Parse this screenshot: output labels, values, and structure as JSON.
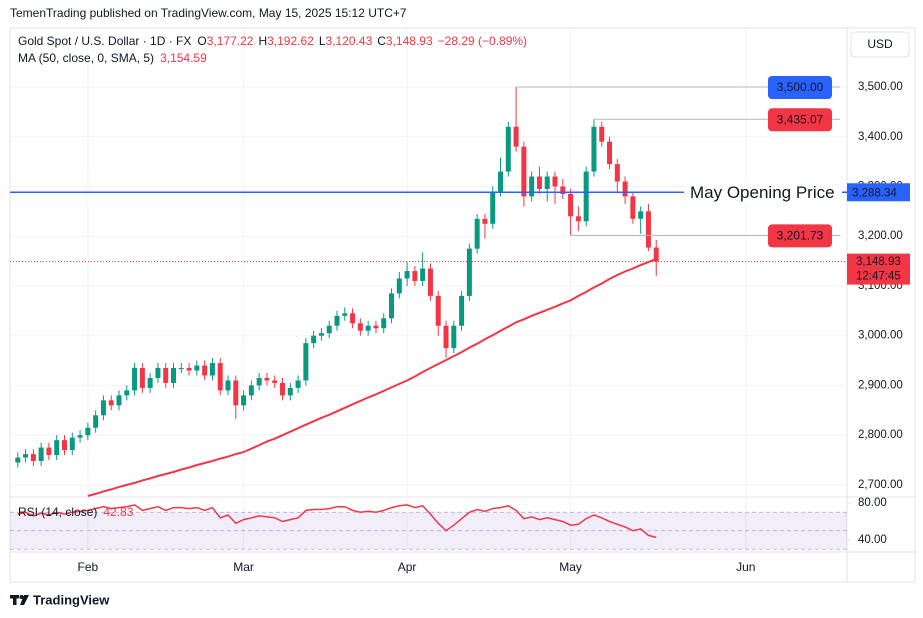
{
  "header": "TemenTrading published on TradingView.com, May 15, 2025 15:12 UTC+7",
  "footer": "TradingView",
  "chart_data": {
    "type": "candlestick",
    "legend": {
      "symbol": "Gold Spot / U.S. Dollar · 1D · FX",
      "ohlc": [
        {
          "key": "O",
          "value": "3,177.22"
        },
        {
          "key": "H",
          "value": "3,192.62"
        },
        {
          "key": "L",
          "value": "3,120.43"
        },
        {
          "key": "C",
          "value": "3,148.93"
        }
      ],
      "change": "−28.29 (−0.89%)"
    },
    "currency": "USD",
    "up_color": "#089981",
    "down_color": "#f23645",
    "candles": {
      "open": [
        2745,
        2755,
        2762,
        2748,
        2775,
        2760,
        2790,
        2770,
        2795,
        2800,
        2815,
        2840,
        2870,
        2860,
        2880,
        2890,
        2935,
        2895,
        2915,
        2935,
        2905,
        2935,
        2935,
        2930,
        2940,
        2920,
        2945,
        2890,
        2910,
        2860,
        2880,
        2900,
        2915,
        2910,
        2905,
        2880,
        2895,
        2910,
        2985,
        3000,
        3005,
        3020,
        3040,
        3045,
        3025,
        3010,
        3020,
        3015,
        3035,
        3085,
        3115,
        3130,
        3110,
        3135,
        3080,
        3020,
        2975,
        3020,
        3080,
        3175,
        3235,
        3225,
        3290,
        3330,
        3420,
        3380,
        3280,
        3320,
        3295,
        3320,
        3300,
        3285,
        3240,
        3230,
        3330,
        3420,
        3390,
        3345,
        3310,
        3280,
        3235,
        3250,
        3177.22
      ],
      "high": [
        2765,
        2772,
        2772,
        2785,
        2785,
        2800,
        2800,
        2805,
        2810,
        2825,
        2850,
        2880,
        2880,
        2890,
        2900,
        2945,
        2945,
        2925,
        2945,
        2945,
        2945,
        2945,
        2945,
        2950,
        2950,
        2955,
        2955,
        2920,
        2920,
        2890,
        2910,
        2925,
        2925,
        2920,
        2915,
        2905,
        2920,
        2995,
        3010,
        3015,
        3030,
        3050,
        3057,
        3055,
        3035,
        3030,
        3030,
        3045,
        3095,
        3128,
        3148,
        3140,
        3167,
        3145,
        3090,
        3030,
        3030,
        3090,
        3185,
        3245,
        3245,
        3300,
        3358,
        3430,
        3500,
        3390,
        3330,
        3340,
        3330,
        3330,
        3315,
        3295,
        3260,
        3340,
        3435.07,
        3430,
        3400,
        3355,
        3320,
        3290,
        3260,
        3265,
        3192.62
      ],
      "low": [
        2735,
        2745,
        2738,
        2738,
        2750,
        2750,
        2760,
        2760,
        2785,
        2790,
        2805,
        2830,
        2850,
        2850,
        2870,
        2880,
        2885,
        2885,
        2905,
        2895,
        2895,
        2925,
        2920,
        2920,
        2910,
        2910,
        2880,
        2880,
        2833,
        2850,
        2870,
        2890,
        2900,
        2895,
        2870,
        2870,
        2885,
        2900,
        2975,
        2990,
        2995,
        3010,
        3030,
        3015,
        3000,
        3000,
        3005,
        3005,
        3025,
        3075,
        3100,
        3100,
        3100,
        3070,
        3000,
        2956,
        2965,
        3010,
        3070,
        3165,
        3195,
        3215,
        3280,
        3320,
        3370,
        3260,
        3270,
        3285,
        3270,
        3265,
        3275,
        3201.73,
        3210,
        3220,
        3320,
        3380,
        3335,
        3290,
        3265,
        3225,
        3205,
        3170,
        3120.43
      ],
      "close": [
        2755,
        2762,
        2748,
        2775,
        2760,
        2790,
        2770,
        2795,
        2800,
        2815,
        2840,
        2870,
        2860,
        2880,
        2890,
        2935,
        2895,
        2915,
        2935,
        2905,
        2935,
        2935,
        2930,
        2940,
        2920,
        2945,
        2890,
        2910,
        2860,
        2880,
        2900,
        2915,
        2910,
        2905,
        2880,
        2895,
        2910,
        2985,
        3000,
        3005,
        3020,
        3040,
        3045,
        3025,
        3010,
        3020,
        3015,
        3035,
        3085,
        3115,
        3130,
        3110,
        3135,
        3080,
        3020,
        2975,
        3020,
        3080,
        3175,
        3235,
        3225,
        3290,
        3330,
        3420,
        3380,
        3280,
        3320,
        3295,
        3320,
        3300,
        3285,
        3240,
        3230,
        3330,
        3420,
        3390,
        3345,
        3310,
        3280,
        3235,
        3250,
        3177.22,
        3148.93
      ]
    },
    "ma": {
      "label": "MA (50, close, 0, SMA, 5)",
      "value_label": "3,154.59",
      "color": "#f23645",
      "values": [
        null,
        null,
        null,
        null,
        null,
        null,
        null,
        null,
        null,
        2678,
        2682,
        2687,
        2691,
        2696,
        2700,
        2704,
        2709,
        2713,
        2718,
        2722,
        2726,
        2731,
        2735,
        2740,
        2744,
        2748,
        2753,
        2757,
        2762,
        2766,
        2773,
        2780,
        2787,
        2793,
        2800,
        2807,
        2814,
        2821,
        2828,
        2835,
        2841,
        2848,
        2855,
        2862,
        2869,
        2876,
        2882,
        2889,
        2896,
        2903,
        2910,
        2918,
        2927,
        2935,
        2943,
        2951,
        2959,
        2967,
        2976,
        2984,
        2993,
        3001,
        3010,
        3018,
        3027,
        3033,
        3040,
        3046,
        3052,
        3058,
        3065,
        3071,
        3080,
        3088,
        3097,
        3105,
        3114,
        3122,
        3129,
        3135,
        3142,
        3148,
        3154.59
      ]
    },
    "xlim": [
      -1,
      106.5
    ],
    "xticks": [
      {
        "value": 9,
        "label": "Feb"
      },
      {
        "value": 29,
        "label": "Mar"
      },
      {
        "value": 50,
        "label": "Apr"
      },
      {
        "value": 71,
        "label": "May"
      },
      {
        "value": 93.5,
        "label": "Jun"
      }
    ],
    "ylim": [
      2675.7,
      3618.6
    ],
    "yticks": [
      {
        "value": 2700,
        "label": "2,700.00"
      },
      {
        "value": 2800,
        "label": "2,800.00"
      },
      {
        "value": 2900,
        "label": "2,900.00"
      },
      {
        "value": 3000,
        "label": "3,000.00"
      },
      {
        "value": 3100,
        "label": "3,100.00"
      },
      {
        "value": 3200,
        "label": "3,200.00"
      },
      {
        "value": 3300,
        "label": "3,300.00"
      },
      {
        "value": 3400,
        "label": "3,400.00"
      },
      {
        "value": 3500,
        "label": "3,500.00"
      }
    ],
    "grid": true,
    "hlines": [
      {
        "value": 3500,
        "label": "3,500.00",
        "color": "#2962ff",
        "start": 64
      },
      {
        "value": 3435.07,
        "label": "3,435.07",
        "color": "#f23645",
        "start": 74
      },
      {
        "value": 3201.73,
        "label": "3,201.73",
        "color": "#f23645",
        "start": 71
      }
    ],
    "opening_line": {
      "value": 3288.34,
      "label": "May Opening Price",
      "axis_label": "3,288.34",
      "color": "#2962ff"
    },
    "last_price": {
      "value": 3148.93,
      "label": "3,148.93",
      "countdown": "12:47:45",
      "color": "#f23645"
    },
    "rsi": {
      "label": "RSI (14, close)",
      "value_label": "42.83",
      "color": "#f23645",
      "ylim": [
        27,
        86.5
      ],
      "yticks": [
        {
          "value": 80,
          "label": "80.00"
        },
        {
          "value": 40,
          "label": "40.00"
        }
      ],
      "levels": [
        70,
        50,
        30
      ],
      "values": [
        68,
        70,
        66,
        69,
        67,
        70,
        68,
        70,
        71,
        72,
        74,
        76,
        74,
        75,
        76,
        78,
        72,
        74,
        76,
        72,
        75,
        75,
        74,
        75,
        72,
        75,
        64,
        67,
        58,
        62,
        64,
        66,
        65,
        64,
        60,
        62,
        64,
        72,
        73,
        73,
        74,
        76,
        76,
        72,
        70,
        71,
        70,
        72,
        75,
        77,
        78,
        75,
        77,
        68,
        58,
        50,
        56,
        63,
        70,
        73,
        71,
        74,
        75,
        77,
        72,
        63,
        65,
        62,
        64,
        62,
        60,
        56,
        57,
        63,
        67,
        64,
        60,
        57,
        54,
        50,
        52,
        45,
        42.83
      ]
    }
  }
}
